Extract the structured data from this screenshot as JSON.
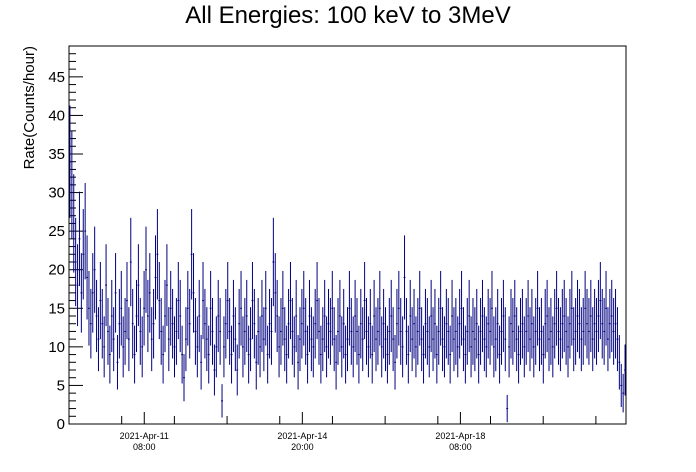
{
  "chart_data": {
    "type": "scatter",
    "title": "All Energies:  100 keV to 3MeV",
    "xlabel": "",
    "ylabel": "Rate(Counts/hour)",
    "ylim": [
      0,
      49
    ],
    "y_ticks": [
      "0",
      "5",
      "10",
      "15",
      "20",
      "25",
      "30",
      "35",
      "40",
      "45"
    ],
    "x_time_labels": [
      {
        "date": "2021-Apr-11",
        "time": "08:00",
        "hours": 40
      },
      {
        "date": "2021-Apr-14",
        "time": "20:00",
        "hours": 124
      },
      {
        "date": "2021-Apr-18",
        "time": "08:00",
        "hours": 208
      }
    ],
    "x_range_hours": [
      0,
      296
    ],
    "grid": false,
    "legend": "none",
    "marker_color": "#000080",
    "series": [
      {
        "values": [
          34,
          31,
          26,
          21,
          18,
          24,
          17,
          22,
          25,
          19,
          15,
          13,
          17,
          20,
          14,
          11,
          16,
          13,
          10,
          18,
          12,
          9,
          14,
          11,
          17,
          8,
          13,
          15,
          10,
          12,
          16,
          11,
          21,
          13,
          9,
          14,
          18,
          12,
          10,
          15,
          20,
          14,
          17,
          11,
          13,
          19,
          22,
          16,
          12,
          9,
          14,
          18,
          11,
          15,
          13,
          10,
          12,
          16,
          14,
          9,
          6,
          11,
          15,
          13,
          22,
          17,
          12,
          10,
          14,
          8,
          16,
          13,
          11,
          9,
          15,
          12,
          7,
          10,
          14,
          12,
          3,
          10,
          13,
          16,
          12,
          9,
          14,
          11,
          7,
          13,
          15,
          10,
          12,
          14,
          9,
          11,
          16,
          13,
          8,
          12,
          10,
          14,
          11,
          15,
          9,
          13,
          12,
          21,
          17,
          14,
          10,
          12,
          15,
          11,
          9,
          13,
          16,
          12,
          10,
          14,
          8,
          11,
          13,
          15,
          12,
          9,
          14,
          11,
          10,
          13,
          16,
          12,
          9,
          11,
          14,
          10,
          13,
          12,
          15,
          11,
          8,
          12,
          14,
          10,
          13,
          9,
          11,
          15,
          12,
          10,
          14,
          12,
          9,
          13,
          11,
          16,
          12,
          10,
          13,
          9,
          14,
          11,
          12,
          15,
          10,
          13,
          11,
          9,
          12,
          14,
          11,
          8,
          13,
          15,
          12,
          10,
          19,
          12,
          9,
          14,
          11,
          13,
          10,
          12,
          15,
          11,
          9,
          13,
          12,
          10,
          14,
          11,
          13,
          9,
          12,
          15,
          11,
          10,
          13,
          12,
          9,
          14,
          11,
          12,
          10,
          13,
          15,
          11,
          9,
          12,
          14,
          10,
          12,
          11,
          13,
          9,
          12,
          14,
          11,
          10,
          13,
          12,
          15,
          10,
          11,
          13,
          9,
          12,
          14,
          11,
          2,
          10,
          13,
          12,
          14,
          11,
          9,
          12,
          13,
          10,
          12,
          14,
          11,
          13,
          10,
          12,
          15,
          11,
          12,
          9,
          13,
          14,
          11,
          12,
          10,
          13,
          15,
          12,
          11,
          13,
          14,
          12,
          10,
          13,
          15,
          11,
          12,
          14,
          13,
          11,
          12,
          15,
          13,
          12,
          14,
          11,
          13,
          12,
          14,
          16,
          13,
          12,
          15,
          11,
          13,
          14,
          12,
          13,
          11,
          8,
          5,
          4,
          7
        ]
      }
    ]
  }
}
